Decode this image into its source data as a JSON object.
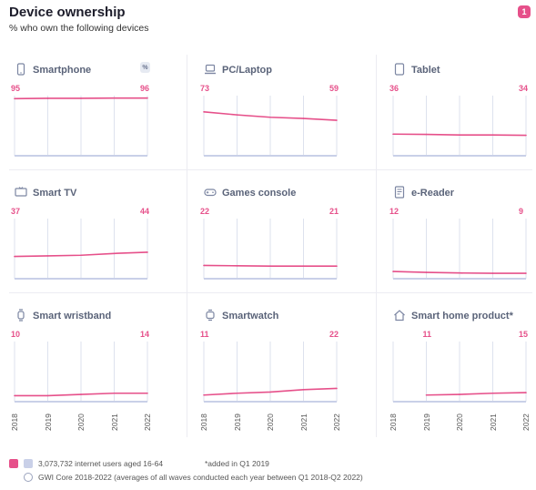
{
  "header": {
    "title": "Device ownership",
    "subtitle": "% who own the following devices",
    "badge": "1",
    "percent_badge": "%"
  },
  "colors": {
    "line": "#e6508a",
    "grid": "#dde2ee",
    "axis": "#c9d0e8",
    "title": "#5a6379"
  },
  "chart_data": [
    {
      "type": "line",
      "title": "Smartphone",
      "icon": "smartphone-icon",
      "x": [
        "2018",
        "2019",
        "2020",
        "2021",
        "2022"
      ],
      "values": [
        95,
        95.5,
        95.5,
        96,
        96
      ],
      "start_label": "95",
      "end_label": "96",
      "ylim": [
        0,
        100
      ]
    },
    {
      "type": "line",
      "title": "PC/Laptop",
      "icon": "laptop-icon",
      "x": [
        "2018",
        "2019",
        "2020",
        "2021",
        "2022"
      ],
      "values": [
        73,
        68,
        64,
        62,
        59
      ],
      "start_label": "73",
      "end_label": "59",
      "ylim": [
        0,
        100
      ]
    },
    {
      "type": "line",
      "title": "Tablet",
      "icon": "tablet-icon",
      "x": [
        "2018",
        "2019",
        "2020",
        "2021",
        "2022"
      ],
      "values": [
        36,
        35.5,
        34.5,
        34.5,
        34
      ],
      "start_label": "36",
      "end_label": "34",
      "ylim": [
        0,
        100
      ]
    },
    {
      "type": "line",
      "title": "Smart TV",
      "icon": "tv-icon",
      "x": [
        "2018",
        "2019",
        "2020",
        "2021",
        "2022"
      ],
      "values": [
        37,
        38,
        39,
        42,
        44
      ],
      "start_label": "37",
      "end_label": "44",
      "ylim": [
        0,
        100
      ]
    },
    {
      "type": "line",
      "title": "Games console",
      "icon": "gamepad-icon",
      "x": [
        "2018",
        "2019",
        "2020",
        "2021",
        "2022"
      ],
      "values": [
        22,
        21.5,
        21,
        21,
        21
      ],
      "start_label": "22",
      "end_label": "21",
      "ylim": [
        0,
        100
      ]
    },
    {
      "type": "line",
      "title": "e-Reader",
      "icon": "ereader-icon",
      "x": [
        "2018",
        "2019",
        "2020",
        "2021",
        "2022"
      ],
      "values": [
        12,
        10.5,
        9.5,
        9,
        9
      ],
      "start_label": "12",
      "end_label": "9",
      "ylim": [
        0,
        100
      ]
    },
    {
      "type": "line",
      "title": "Smart wristband",
      "icon": "wristband-icon",
      "x": [
        "2018",
        "2019",
        "2020",
        "2021",
        "2022"
      ],
      "values": [
        10,
        10,
        12,
        14,
        14
      ],
      "start_label": "10",
      "end_label": "14",
      "ylim": [
        0,
        100
      ]
    },
    {
      "type": "line",
      "title": "Smartwatch",
      "icon": "smartwatch-icon",
      "x": [
        "2018",
        "2019",
        "2020",
        "2021",
        "2022"
      ],
      "values": [
        11,
        14,
        16,
        20,
        22
      ],
      "start_label": "11",
      "end_label": "22",
      "ylim": [
        0,
        100
      ]
    },
    {
      "type": "line",
      "title": "Smart home product*",
      "icon": "smart-home-icon",
      "x": [
        "2018",
        "2019",
        "2020",
        "2021",
        "2022"
      ],
      "values": [
        null,
        11,
        12,
        14,
        15
      ],
      "start_label": "11",
      "end_label": "15",
      "ylim": [
        0,
        100
      ]
    }
  ],
  "footer": {
    "audience": "3,073,732 internet users aged 16-64",
    "note": "*added in Q1 2019",
    "source": "GWI Core 2018-2022 (averages of all waves conducted each year between Q1 2018-Q2 2022)"
  }
}
